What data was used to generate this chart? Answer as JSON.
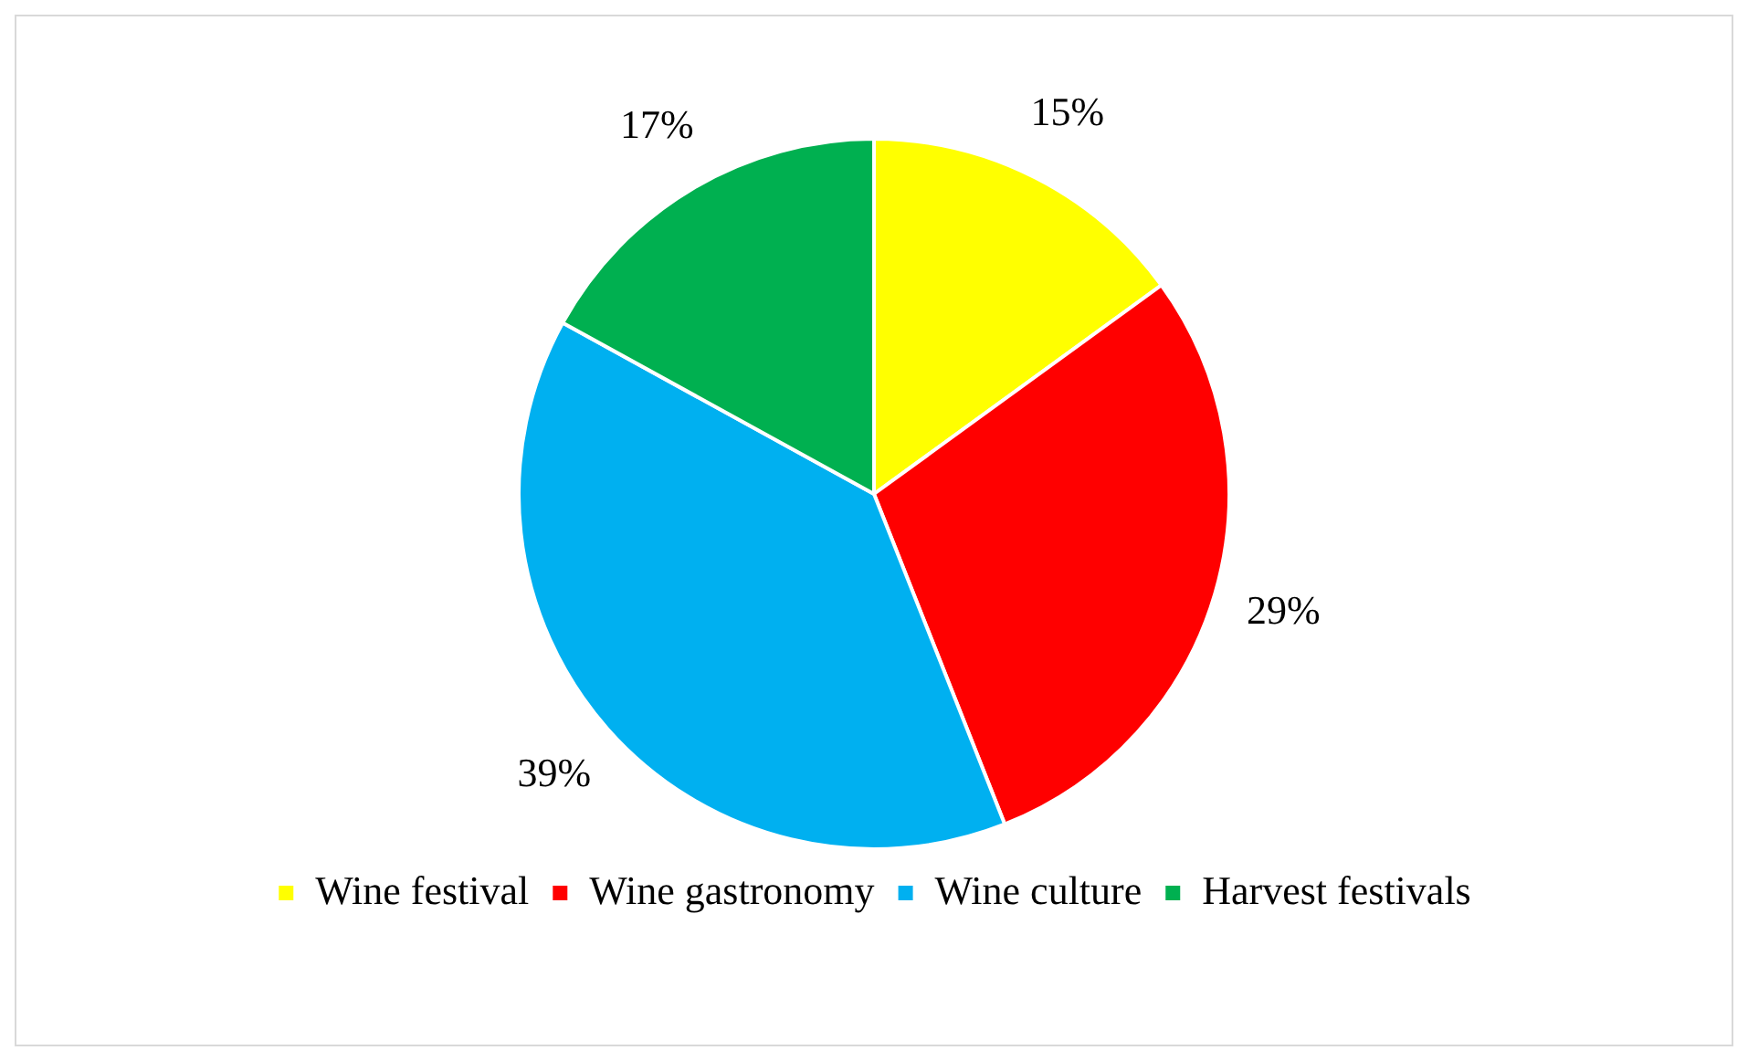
{
  "chart_data": {
    "type": "pie",
    "categories": [
      "Wine festival",
      "Wine gastronomy",
      "Wine culture",
      "Harvest festivals"
    ],
    "values": [
      15,
      29,
      39,
      17
    ],
    "colors": [
      "#ffff00",
      "#ff0000",
      "#00b0f0",
      "#00b050"
    ],
    "value_labels": [
      "15%",
      "29%",
      "39%",
      "17%"
    ],
    "legend": "bottom"
  }
}
